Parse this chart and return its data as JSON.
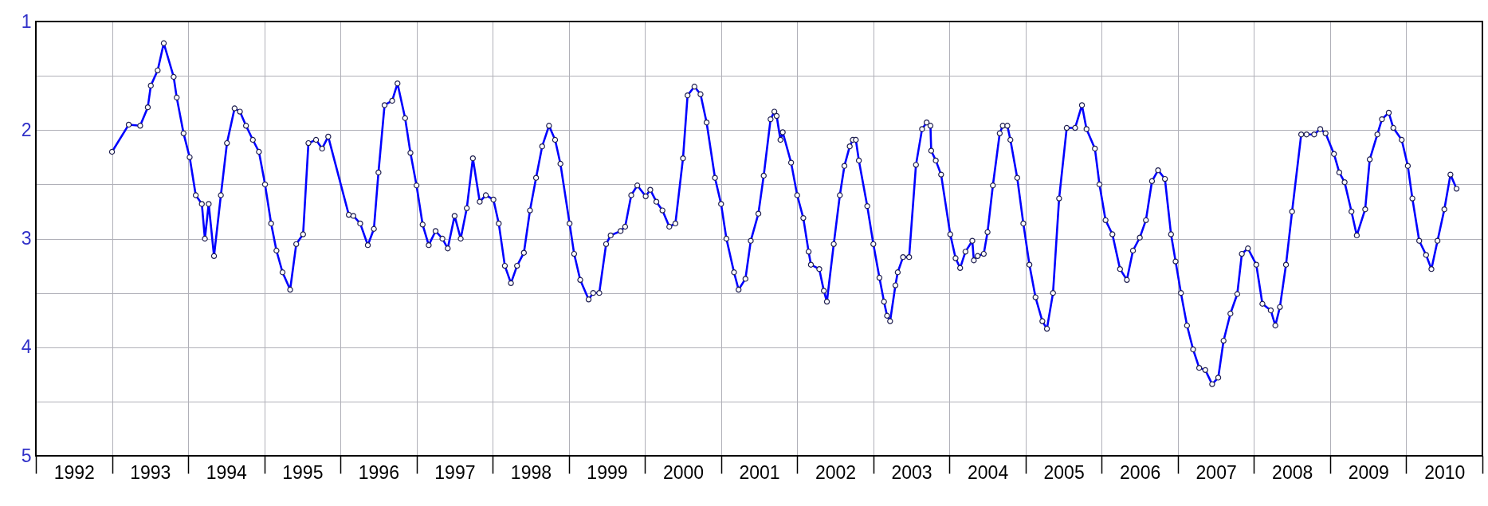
{
  "chart_data": {
    "type": "line",
    "marker": "circle",
    "grid": true,
    "line_style": "solid",
    "xlim": [
      1992,
      2011
    ],
    "xticks": [
      {
        "value": 1992,
        "label": null
      },
      {
        "value": 1992.5,
        "label": "1992"
      },
      {
        "value": 1993,
        "label": null
      },
      {
        "value": 1993.5,
        "label": "1993"
      },
      {
        "value": 1994,
        "label": null
      },
      {
        "value": 1994.5,
        "label": "1994"
      },
      {
        "value": 1995,
        "label": null
      },
      {
        "value": 1995.5,
        "label": "1995"
      },
      {
        "value": 1996,
        "label": null
      },
      {
        "value": 1996.5,
        "label": "1996"
      },
      {
        "value": 1997,
        "label": null
      },
      {
        "value": 1997.5,
        "label": "1997"
      },
      {
        "value": 1998,
        "label": null
      },
      {
        "value": 1998.5,
        "label": "1998"
      },
      {
        "value": 1999,
        "label": null
      },
      {
        "value": 1999.5,
        "label": "1999"
      },
      {
        "value": 2000,
        "label": null
      },
      {
        "value": 2000.5,
        "label": "2000"
      },
      {
        "value": 2001,
        "label": null
      },
      {
        "value": 2001.5,
        "label": "2001"
      },
      {
        "value": 2002,
        "label": null
      },
      {
        "value": 2002.5,
        "label": "2002"
      },
      {
        "value": 2003,
        "label": null
      },
      {
        "value": 2003.5,
        "label": "2003"
      },
      {
        "value": 2004,
        "label": null
      },
      {
        "value": 2004.5,
        "label": "2004"
      },
      {
        "value": 2005,
        "label": null
      },
      {
        "value": 2005.5,
        "label": "2005"
      },
      {
        "value": 2006,
        "label": null
      },
      {
        "value": 2006.5,
        "label": "2006"
      },
      {
        "value": 2007,
        "label": null
      },
      {
        "value": 2007.5,
        "label": "2007"
      },
      {
        "value": 2008,
        "label": null
      },
      {
        "value": 2008.5,
        "label": "2008"
      },
      {
        "value": 2009,
        "label": null
      },
      {
        "value": 2009.5,
        "label": "2009"
      },
      {
        "value": 2010,
        "label": null
      },
      {
        "value": 2010.5,
        "label": "2010"
      },
      {
        "value": 2011,
        "label": null
      }
    ],
    "ylim": [
      5,
      1
    ],
    "yticks": [
      1,
      {
        "value": 1.5,
        "label": null
      },
      2,
      {
        "value": 2.5,
        "label": null
      },
      3,
      {
        "value": 3.5,
        "label": null
      },
      4,
      {
        "value": 4.5,
        "label": null
      },
      5
    ],
    "series": [
      {
        "color": "#0000ff",
        "x": [
          1993.0,
          1993.22,
          1993.37,
          1993.47,
          1993.51,
          1993.6,
          1993.68,
          1993.81,
          1993.85,
          1993.94,
          1994.02,
          1994.1,
          1994.18,
          1994.22,
          1994.27,
          1994.34,
          1994.43,
          1994.51,
          1994.61,
          1994.68,
          1994.76,
          1994.85,
          1994.93,
          1995.01,
          1995.09,
          1995.16,
          1995.24,
          1995.34,
          1995.42,
          1995.51,
          1995.58,
          1995.68,
          1995.76,
          1995.84,
          1996.11,
          1996.17,
          1996.26,
          1996.36,
          1996.44,
          1996.5,
          1996.58,
          1996.68,
          1996.75,
          1996.85,
          1996.92,
          1997.0,
          1997.08,
          1997.16,
          1997.25,
          1997.34,
          1997.41,
          1997.5,
          1997.58,
          1997.66,
          1997.74,
          1997.83,
          1997.91,
          1998.01,
          1998.08,
          1998.16,
          1998.24,
          1998.32,
          1998.41,
          1998.49,
          1998.57,
          1998.65,
          1998.74,
          1998.82,
          1998.89,
          1999.01,
          1999.07,
          1999.15,
          1999.26,
          1999.32,
          1999.4,
          1999.49,
          1999.55,
          1999.68,
          1999.74,
          1999.82,
          1999.9,
          2000.01,
          2000.07,
          2000.15,
          2000.23,
          2000.32,
          2000.4,
          2000.5,
          2000.56,
          2000.65,
          2000.73,
          2000.81,
          2000.92,
          2001.0,
          2001.07,
          2001.17,
          2001.23,
          2001.32,
          2001.39,
          2001.49,
          2001.56,
          2001.65,
          2001.7,
          2001.73,
          2001.78,
          2001.81,
          2001.92,
          2002.0,
          2002.08,
          2002.15,
          2002.18,
          2002.29,
          2002.35,
          2002.39,
          2002.48,
          2002.56,
          2002.62,
          2002.69,
          2002.73,
          2002.77,
          2002.81,
          2002.92,
          2003.0,
          2003.08,
          2003.14,
          2003.18,
          2003.22,
          2003.29,
          2003.32,
          2003.39,
          2003.47,
          2003.56,
          2003.64,
          2003.7,
          2003.75,
          2003.76,
          2003.82,
          2003.89,
          2004.01,
          2004.08,
          2004.14,
          2004.21,
          2004.3,
          2004.32,
          2004.37,
          2004.45,
          2004.5,
          2004.57,
          2004.66,
          2004.7,
          2004.76,
          2004.8,
          2004.89,
          2004.97,
          2005.05,
          2005.13,
          2005.22,
          2005.28,
          2005.36,
          2005.44,
          2005.54,
          2005.65,
          2005.74,
          2005.8,
          2005.91,
          2005.97,
          2006.05,
          2006.14,
          2006.24,
          2006.33,
          2006.41,
          2006.5,
          2006.58,
          2006.66,
          2006.74,
          2006.83,
          2006.91,
          2006.97,
          2007.04,
          2007.12,
          2007.2,
          2007.28,
          2007.36,
          2007.45,
          2007.53,
          2007.6,
          2007.69,
          2007.78,
          2007.84,
          2007.92,
          2008.03,
          2008.11,
          2008.22,
          2008.28,
          2008.34,
          2008.42,
          2008.5,
          2008.62,
          2008.69,
          2008.79,
          2008.87,
          2008.94,
          2009.05,
          2009.12,
          2009.19,
          2009.28,
          2009.35,
          2009.46,
          2009.52,
          2009.62,
          2009.68,
          2009.77,
          2009.83,
          2009.94,
          2010.02,
          2010.08,
          2010.17,
          2010.26,
          2010.33,
          2010.41,
          2010.5,
          2010.58,
          2010.66
        ],
        "values": [
          2.2,
          1.95,
          1.96,
          1.79,
          1.59,
          1.45,
          1.2,
          1.51,
          1.7,
          2.03,
          2.25,
          2.6,
          2.68,
          3.0,
          2.68,
          3.16,
          2.6,
          2.12,
          1.8,
          1.83,
          1.96,
          2.09,
          2.2,
          2.5,
          2.86,
          3.11,
          3.31,
          3.47,
          3.05,
          2.96,
          2.12,
          2.09,
          2.17,
          2.06,
          2.78,
          2.79,
          2.86,
          3.06,
          2.91,
          2.39,
          1.77,
          1.73,
          1.57,
          1.89,
          2.21,
          2.51,
          2.87,
          3.06,
          2.93,
          3.0,
          3.09,
          2.79,
          3.0,
          2.72,
          2.26,
          2.66,
          2.6,
          2.64,
          2.86,
          3.25,
          3.41,
          3.25,
          3.13,
          2.74,
          2.44,
          2.15,
          1.96,
          2.09,
          2.31,
          2.86,
          3.14,
          3.38,
          3.56,
          3.5,
          3.5,
          3.05,
          2.97,
          2.93,
          2.89,
          2.6,
          2.51,
          2.61,
          2.55,
          2.66,
          2.74,
          2.89,
          2.86,
          2.26,
          1.68,
          1.6,
          1.67,
          1.93,
          2.44,
          2.68,
          3.0,
          3.31,
          3.47,
          3.37,
          3.02,
          2.77,
          2.42,
          1.9,
          1.83,
          1.87,
          2.09,
          2.02,
          2.3,
          2.6,
          2.81,
          3.12,
          3.24,
          3.28,
          3.48,
          3.58,
          3.05,
          2.6,
          2.33,
          2.15,
          2.09,
          2.09,
          2.28,
          2.7,
          3.05,
          3.36,
          3.58,
          3.71,
          3.76,
          3.43,
          3.31,
          3.17,
          3.17,
          2.32,
          1.99,
          1.93,
          1.96,
          2.19,
          2.28,
          2.41,
          2.96,
          3.18,
          3.27,
          3.12,
          3.02,
          3.2,
          3.16,
          3.14,
          2.94,
          2.51,
          2.03,
          1.96,
          1.96,
          2.09,
          2.44,
          2.86,
          3.24,
          3.54,
          3.76,
          3.83,
          3.5,
          2.63,
          1.98,
          1.98,
          1.77,
          1.99,
          2.17,
          2.5,
          2.83,
          2.96,
          3.28,
          3.38,
          3.11,
          2.99,
          2.83,
          2.47,
          2.37,
          2.45,
          2.96,
          3.21,
          3.5,
          3.8,
          4.02,
          4.19,
          4.21,
          4.34,
          4.28,
          3.94,
          3.69,
          3.51,
          3.14,
          3.09,
          3.24,
          3.6,
          3.66,
          3.8,
          3.63,
          3.24,
          2.75,
          2.04,
          2.04,
          2.04,
          1.99,
          2.03,
          2.22,
          2.39,
          2.48,
          2.75,
          2.97,
          2.73,
          2.27,
          2.04,
          1.9,
          1.84,
          1.98,
          2.09,
          2.33,
          2.63,
          3.02,
          3.15,
          3.28,
          3.02,
          2.73,
          2.41,
          2.54
        ]
      }
    ]
  }
}
